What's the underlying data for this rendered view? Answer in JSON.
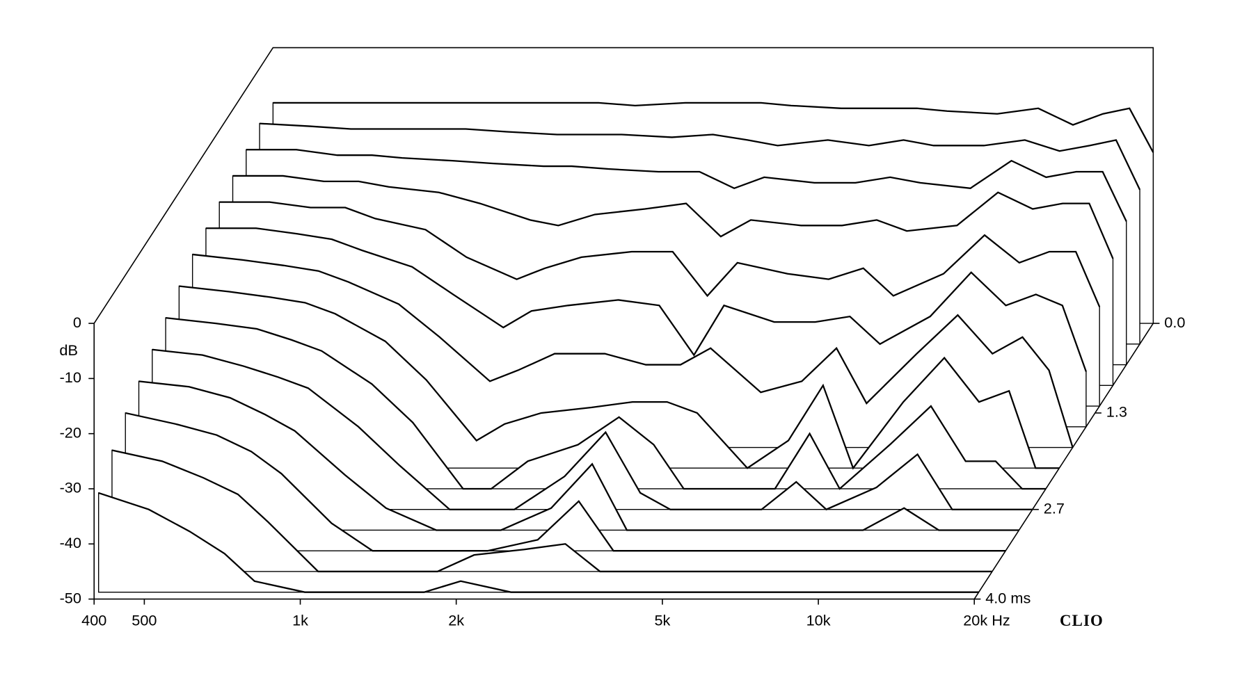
{
  "chart_data": {
    "type": "waterfall",
    "ylabel": "dB",
    "brand": "CLIO",
    "x": [
      400,
      500,
      600,
      700,
      800,
      1000,
      1200,
      1500,
      1700,
      2000,
      2500,
      3000,
      3500,
      4000,
      5000,
      6000,
      7000,
      8000,
      10000,
      12000,
      14000,
      16000,
      18000,
      20000
    ],
    "xlim": [
      400,
      20000
    ],
    "xscale": "log",
    "xticks": [
      400,
      500,
      {
        "value": 1000,
        "label": "1k"
      },
      {
        "value": 2000,
        "label": "2k"
      },
      {
        "value": 5000,
        "label": "5k"
      },
      {
        "value": 10000,
        "label": "10k"
      },
      {
        "value": 20000,
        "label": "20k Hz"
      }
    ],
    "ylim": [
      -50,
      0
    ],
    "yticks": [
      0,
      -10,
      -20,
      -30,
      -40,
      -50
    ],
    "zlim": [
      0,
      4.0
    ],
    "zticks": [
      {
        "value": 0,
        "label": "0.0"
      },
      1.3,
      2.7,
      {
        "value": 4.0,
        "label": "4.0 ms"
      }
    ],
    "color": "#000000",
    "series": [
      {
        "t": 0.0,
        "values": [
          -10,
          -10,
          -10,
          -10,
          -10,
          -10,
          -10,
          -10,
          -10,
          -10.5,
          -10,
          -10,
          -10,
          -10.5,
          -11,
          -11,
          -11,
          -11.5,
          -12,
          -11,
          -14,
          -12,
          -11,
          -19
        ]
      },
      {
        "t": 0.3,
        "values": [
          -10,
          -10.5,
          -11,
          -11,
          -11,
          -11,
          -11.5,
          -12,
          -12,
          -12,
          -12.5,
          -12,
          -13,
          -14,
          -13,
          -14,
          -13,
          -14,
          -14,
          -13,
          -15,
          -14,
          -13,
          -22
        ]
      },
      {
        "t": 0.6,
        "values": [
          -11,
          -11,
          -12,
          -12,
          -12.5,
          -13,
          -13.5,
          -14,
          -14,
          -14.5,
          -15,
          -15,
          -18,
          -16,
          -17,
          -17,
          -16,
          -17,
          -18,
          -13,
          -16,
          -15,
          -15,
          -24
        ]
      },
      {
        "t": 0.9,
        "values": [
          -12,
          -12,
          -13,
          -13,
          -14,
          -15,
          -17,
          -20,
          -21,
          -19,
          -18,
          -17,
          -23,
          -20,
          -21,
          -21,
          -20,
          -22,
          -21,
          -15,
          -18,
          -17,
          -17,
          -27
        ]
      },
      {
        "t": 1.2,
        "values": [
          -13,
          -13,
          -14,
          -14,
          -16,
          -18,
          -23,
          -27,
          -25,
          -23,
          -22,
          -22,
          -30,
          -24,
          -26,
          -27,
          -25,
          -30,
          -26,
          -19,
          -24,
          -22,
          -22,
          -32
        ]
      },
      {
        "t": 1.5,
        "values": [
          -14,
          -14,
          -15,
          -16,
          -18,
          -21,
          -26,
          -32,
          -29,
          -28,
          -27,
          -28,
          -37,
          -28,
          -31,
          -31,
          -30,
          -35,
          -30,
          -22,
          -28,
          -26,
          -28,
          -40
        ]
      },
      {
        "t": 1.8,
        "values": [
          -15,
          -16,
          -17,
          -18,
          -20,
          -24,
          -30,
          -38,
          -36,
          -33,
          -33,
          -35,
          -35,
          -32,
          -40,
          -38,
          -32,
          -42,
          -33,
          -26,
          -33,
          -30,
          -36,
          -50
        ]
      },
      {
        "t": 2.1,
        "values": [
          -17,
          -18,
          -19,
          -20,
          -22,
          -27,
          -34,
          -45,
          -42,
          -40,
          -39,
          -38,
          -38,
          -40,
          -50,
          -45,
          -35,
          -50,
          -38,
          -30,
          -38,
          -36,
          -50,
          -50
        ]
      },
      {
        "t": 2.4,
        "values": [
          -19,
          -20,
          -21,
          -23,
          -25,
          -31,
          -38,
          -50,
          -50,
          -45,
          -42,
          -37,
          -42,
          -50,
          -50,
          -50,
          -40,
          -50,
          -42,
          -35,
          -45,
          -45,
          -50,
          -50
        ]
      },
      {
        "t": 2.7,
        "values": [
          -21,
          -22,
          -24,
          -26,
          -28,
          -35,
          -42,
          -50,
          -50,
          -50,
          -44,
          -36,
          -47,
          -50,
          -50,
          -50,
          -45,
          -50,
          -46,
          -40,
          -50,
          -50,
          -50,
          -50
        ]
      },
      {
        "t": 3.0,
        "values": [
          -23,
          -24,
          -26,
          -29,
          -32,
          -40,
          -46,
          -50,
          -50,
          -50,
          -46,
          -38,
          -50,
          -50,
          -50,
          -50,
          -50,
          -50,
          -50,
          -46,
          -50,
          -50,
          -50,
          -50
        ]
      },
      {
        "t": 3.3,
        "values": [
          -25,
          -27,
          -29,
          -32,
          -36,
          -45,
          -50,
          -50,
          -50,
          -50,
          -48,
          -41,
          -50,
          -50,
          -50,
          -50,
          -50,
          -50,
          -50,
          -50,
          -50,
          -50,
          -50,
          -50
        ]
      },
      {
        "t": 3.6,
        "values": [
          -28,
          -30,
          -33,
          -36,
          -41,
          -50,
          -50,
          -50,
          -50,
          -47,
          -46,
          -45,
          -50,
          -50,
          -50,
          -50,
          -50,
          -50,
          -50,
          -50,
          -50,
          -50,
          -50,
          -50
        ]
      },
      {
        "t": 3.9,
        "values": [
          -32,
          -35,
          -39,
          -43,
          -48,
          -50,
          -50,
          -50,
          -50,
          -48,
          -50,
          -50,
          -50,
          -50,
          -50,
          -50,
          -50,
          -50,
          -50,
          -50,
          -50,
          -50,
          -50,
          -50
        ]
      }
    ]
  }
}
